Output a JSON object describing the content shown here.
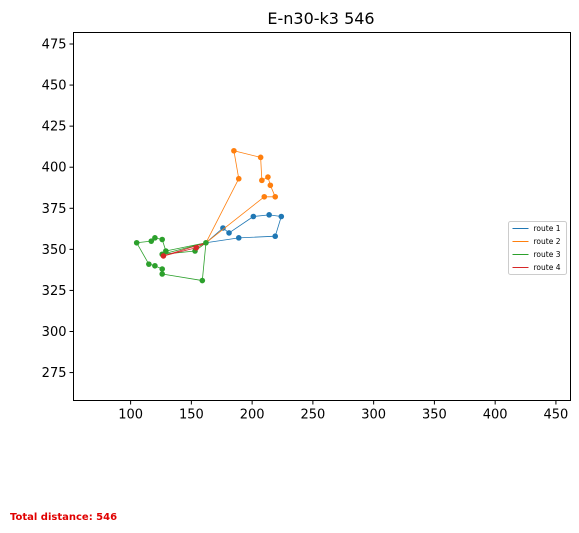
{
  "chart_data": {
    "type": "line",
    "title": "E-n30-k3 546",
    "xlabel": "",
    "ylabel": "",
    "xlim": [
      53,
      462
    ],
    "ylim": [
      258,
      482
    ],
    "xticks": [
      100,
      150,
      200,
      250,
      300,
      350,
      400,
      450
    ],
    "yticks": [
      275,
      300,
      325,
      350,
      375,
      400,
      425,
      450,
      475
    ],
    "grid": false,
    "legend": "center-right",
    "depot": [
      162,
      354
    ],
    "series": [
      {
        "name": "route 1",
        "color": "#1f77b4",
        "points": [
          [
            162,
            354
          ],
          [
            176,
            363
          ],
          [
            181,
            360
          ],
          [
            201,
            370
          ],
          [
            214,
            371
          ],
          [
            224,
            370
          ],
          [
            219,
            358
          ],
          [
            189,
            357
          ],
          [
            162,
            354
          ]
        ]
      },
      {
        "name": "route 2",
        "color": "#ff7f0e",
        "points": [
          [
            162,
            354
          ],
          [
            210,
            382
          ],
          [
            219,
            382
          ],
          [
            215,
            389
          ],
          [
            213,
            394
          ],
          [
            208,
            392
          ],
          [
            207,
            406
          ],
          [
            185,
            410
          ],
          [
            189,
            393
          ],
          [
            162,
            354
          ]
        ]
      },
      {
        "name": "route 3",
        "color": "#2ca02c",
        "points": [
          [
            162,
            354
          ],
          [
            159,
            331
          ],
          [
            126,
            335
          ],
          [
            126,
            338
          ],
          [
            120,
            340
          ],
          [
            115,
            341
          ],
          [
            105,
            354
          ],
          [
            117,
            355
          ],
          [
            120,
            357
          ],
          [
            126,
            356
          ],
          [
            129,
            349
          ],
          [
            162,
            354
          ],
          [
            153,
            349
          ],
          [
            126,
            347
          ],
          [
            162,
            354
          ]
        ]
      },
      {
        "name": "route 4",
        "color": "#d62728",
        "points": [
          [
            162,
            354
          ],
          [
            154,
            351
          ],
          [
            127,
            346
          ],
          [
            162,
            354
          ]
        ]
      }
    ]
  },
  "footer": {
    "total_distance": "Total distance: 546"
  }
}
